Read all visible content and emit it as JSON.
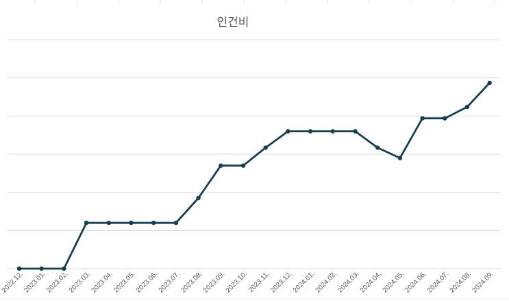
{
  "chart_data": {
    "type": "line",
    "title": "인건비",
    "categories": [
      "2022.12.",
      "2023.01.",
      "2023.02.",
      "2023.03.",
      "2023.04.",
      "2023.05.",
      "2023.06.",
      "2023.07.",
      "2023.08.",
      "2023.09.",
      "2023.10.",
      "2023.11.",
      "2023.12.",
      "2024.01.",
      "2024.02.",
      "2024.03.",
      "2024.04.",
      "2024.05.",
      "2024.06.",
      "2024.07.",
      "2024.08.",
      "2024.09."
    ],
    "values": [
      0,
      0,
      0,
      1.2,
      1.2,
      1.2,
      1.2,
      1.2,
      1.85,
      2.7,
      2.7,
      3.17,
      3.6,
      3.6,
      3.6,
      3.6,
      3.17,
      2.9,
      3.94,
      3.94,
      4.24,
      4.87
    ],
    "ylim": [
      0,
      6
    ],
    "y_ticks_labeled": false,
    "grid": true,
    "legend": "none",
    "colors": {
      "line": "#173f4f",
      "grid": "#d9d9d9",
      "title": "#595959",
      "tick_label": "#595959"
    }
  }
}
